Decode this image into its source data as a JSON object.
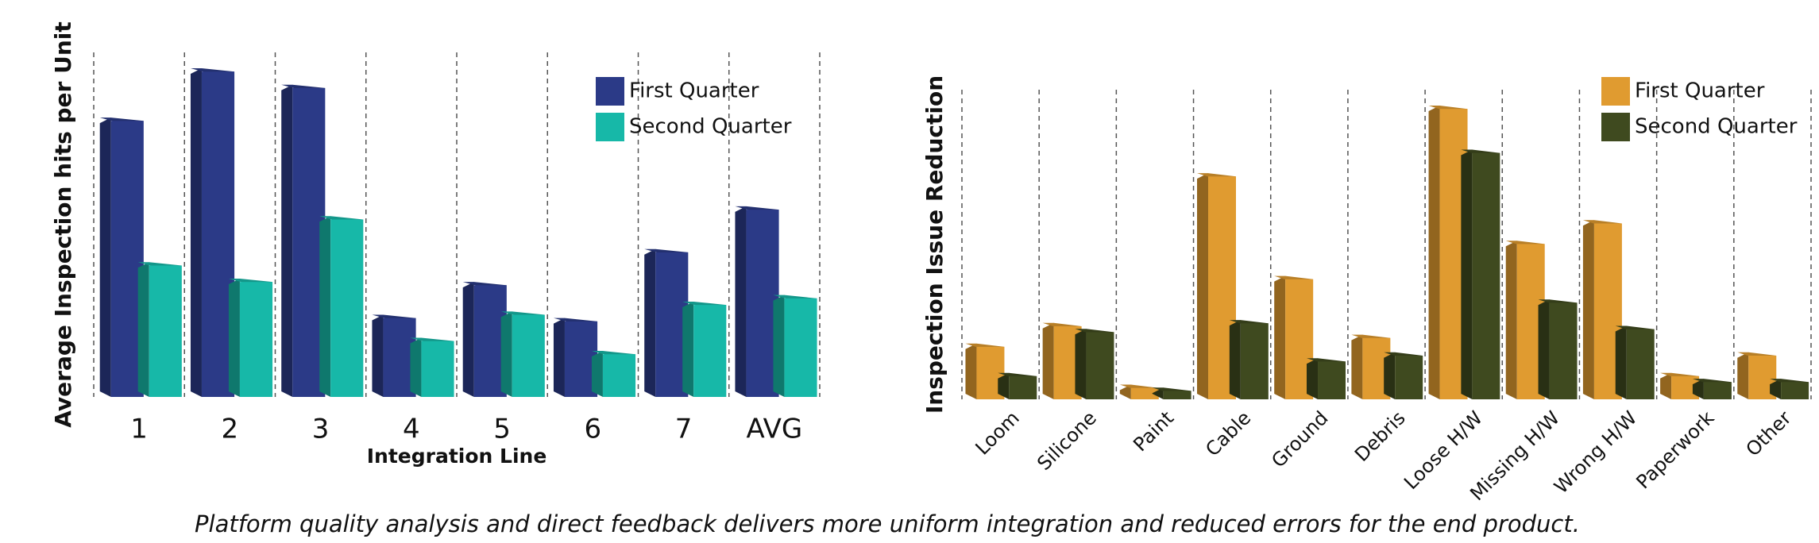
{
  "chart_data": [
    {
      "type": "bar3d",
      "ylabel": "Average Inspection hits per Unit",
      "xlabel": "Integration Line",
      "categories": [
        "1",
        "2",
        "3",
        "4",
        "5",
        "6",
        "7",
        "AVG"
      ],
      "series": [
        {
          "name": "First Quarter",
          "color": "#2b3a87",
          "values": [
            8.5,
            10.0,
            9.5,
            2.5,
            3.5,
            2.4,
            4.5,
            5.8
          ]
        },
        {
          "name": "Second Quarter",
          "color": "#17b8a8",
          "values": [
            4.1,
            3.6,
            5.5,
            1.8,
            2.6,
            1.4,
            2.9,
            3.1
          ]
        }
      ]
    },
    {
      "type": "bar3d",
      "ylabel": "Inspection Issue Reduction",
      "categories": [
        "Loom",
        "Silicone",
        "Paint",
        "Cable",
        "Ground",
        "Debris",
        "Loose H/W",
        "Missing H/W",
        "Wrong H/W",
        "Paperwork",
        "Other"
      ],
      "series": [
        {
          "name": "First Quarter",
          "color": "#e09b30",
          "values": [
            1.9,
            2.6,
            0.5,
            7.7,
            4.2,
            2.2,
            10.0,
            5.4,
            6.1,
            0.9,
            1.6
          ]
        },
        {
          "name": "Second Quarter",
          "color": "#3f4a1f",
          "values": [
            0.9,
            2.4,
            0.4,
            2.7,
            1.4,
            1.6,
            8.5,
            3.4,
            2.5,
            0.7,
            0.7
          ]
        }
      ]
    }
  ],
  "caption": "Platform quality analysis and direct feedback delivers more uniform integration and reduced errors for the end product."
}
